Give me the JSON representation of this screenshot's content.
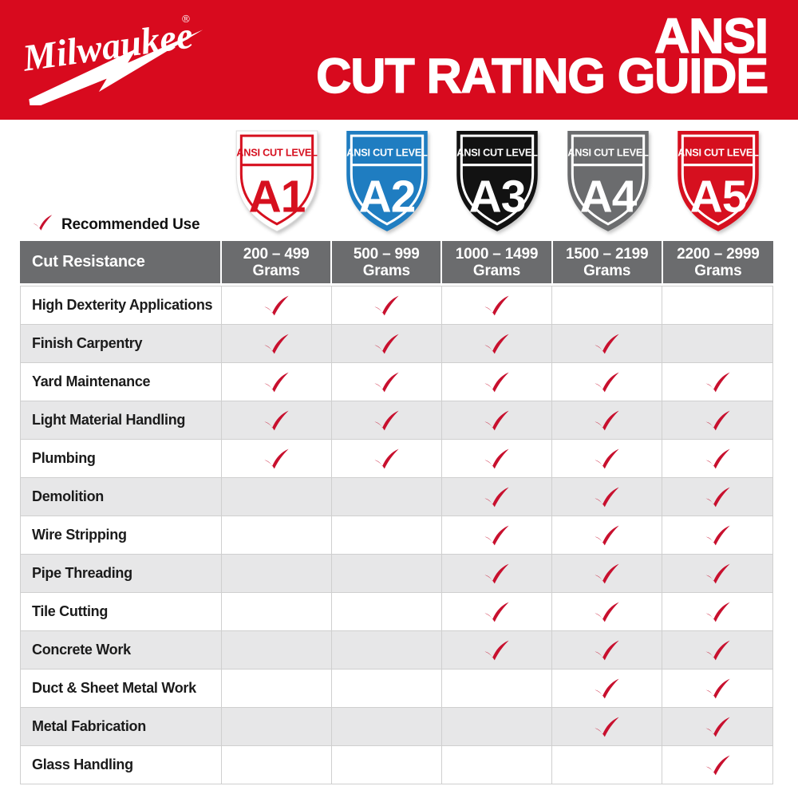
{
  "header": {
    "brand": "Milwaukee",
    "registered_mark": "®",
    "title_line1": "ANSI",
    "title_line2": "CUT RATING GUIDE"
  },
  "legend": {
    "label": "Recommended Use"
  },
  "shields": [
    {
      "level": "A1",
      "label": "ANSI CUT LEVEL",
      "fill": "#FFFFFF",
      "accent": "#D6101F",
      "text": "#D6101F",
      "outer_stroke": "#DCDCDC"
    },
    {
      "level": "A2",
      "label": "ANSI CUT LEVEL",
      "fill": "#1F7DC1",
      "accent": "#FFFFFF",
      "text": "#FFFFFF",
      "outer_stroke": "none"
    },
    {
      "level": "A3",
      "label": "ANSI CUT LEVEL",
      "fill": "#121212",
      "accent": "#FFFFFF",
      "text": "#FFFFFF",
      "outer_stroke": "none"
    },
    {
      "level": "A4",
      "label": "ANSI CUT LEVEL",
      "fill": "#6B6C6E",
      "accent": "#FFFFFF",
      "text": "#FFFFFF",
      "outer_stroke": "none"
    },
    {
      "level": "A5",
      "label": "ANSI CUT LEVEL",
      "fill": "#D6101F",
      "accent": "#FFFFFF",
      "text": "#FFFFFF",
      "outer_stroke": "none"
    }
  ],
  "table": {
    "corner_header": "Cut Resistance",
    "columns": [
      {
        "range": "200 – 499",
        "unit": "Grams"
      },
      {
        "range": "500 – 999",
        "unit": "Grams"
      },
      {
        "range": "1000 – 1499",
        "unit": "Grams"
      },
      {
        "range": "1500 – 2199",
        "unit": "Grams"
      },
      {
        "range": "2200 – 2999",
        "unit": "Grams"
      }
    ],
    "rows": [
      {
        "label": "High Dexterity Applications",
        "checks": [
          true,
          true,
          true,
          false,
          false
        ]
      },
      {
        "label": "Finish Carpentry",
        "checks": [
          true,
          true,
          true,
          true,
          false
        ]
      },
      {
        "label": "Yard Maintenance",
        "checks": [
          true,
          true,
          true,
          true,
          true
        ]
      },
      {
        "label": "Light Material Handling",
        "checks": [
          true,
          true,
          true,
          true,
          true
        ]
      },
      {
        "label": "Plumbing",
        "checks": [
          true,
          true,
          true,
          true,
          true
        ]
      },
      {
        "label": "Demolition",
        "checks": [
          false,
          false,
          true,
          true,
          true
        ]
      },
      {
        "label": "Wire Stripping",
        "checks": [
          false,
          false,
          true,
          true,
          true
        ]
      },
      {
        "label": "Pipe Threading",
        "checks": [
          false,
          false,
          true,
          true,
          true
        ]
      },
      {
        "label": "Tile Cutting",
        "checks": [
          false,
          false,
          true,
          true,
          true
        ]
      },
      {
        "label": "Concrete Work",
        "checks": [
          false,
          false,
          true,
          true,
          true
        ]
      },
      {
        "label": "Duct & Sheet Metal Work",
        "checks": [
          false,
          false,
          false,
          true,
          true
        ]
      },
      {
        "label": "Metal Fabrication",
        "checks": [
          false,
          false,
          false,
          true,
          true
        ]
      },
      {
        "label": "Glass Handling",
        "checks": [
          false,
          false,
          false,
          false,
          true
        ]
      }
    ]
  },
  "colors": {
    "brand_red": "#D80A1E",
    "check_red": "#C8102E",
    "header_gray": "#6B6C6E",
    "alt_row": "#E7E7E8",
    "grid_border": "#CFCFCF"
  }
}
